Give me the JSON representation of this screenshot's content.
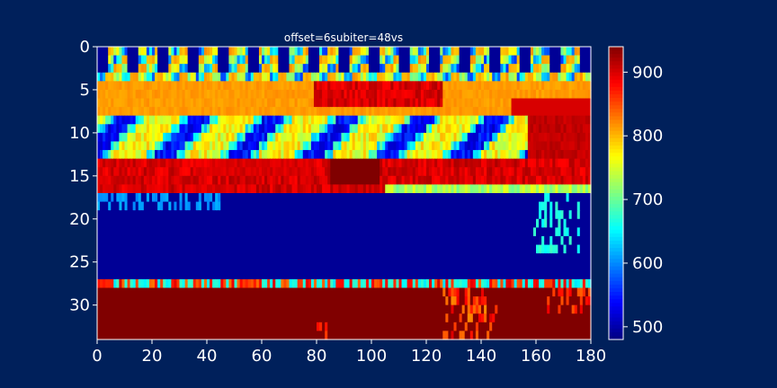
{
  "chart_data": {
    "type": "heatmap",
    "title": "offset=6subiter=48vs",
    "xlabel": "",
    "ylabel": "",
    "colormap": "jet",
    "xlim": [
      0,
      180
    ],
    "ylim": [
      34,
      0
    ],
    "x_ticks": [
      0,
      20,
      40,
      60,
      80,
      100,
      120,
      140,
      160,
      180
    ],
    "y_ticks": [
      0,
      5,
      10,
      15,
      20,
      25,
      30
    ],
    "colorbar": {
      "range": [
        480,
        940
      ],
      "ticks": [
        500,
        600,
        700,
        800,
        900
      ]
    },
    "grid": false,
    "rows": 34,
    "cols": 180,
    "approximate_field_by_depth": [
      {
        "y_range": [
          0,
          4
        ],
        "value": "mixed 500-800 (comb of dark-blue/yellow stripes)"
      },
      {
        "y_range": [
          4,
          8
        ],
        "value": 810,
        "note": "orange/red 900+ patch around x=80-125"
      },
      {
        "y_range": [
          8,
          14
        ],
        "value": "mixed 560-760 (cyan/blue/yellow), red 900 at x=158-180"
      },
      {
        "y_range": [
          13,
          17
        ],
        "value": 900,
        "note": "dark-red 940 block at x=85-102"
      },
      {
        "y_range": [
          17,
          27
        ],
        "value": 490
      },
      {
        "y_range": [
          27,
          28
        ],
        "value": "mixed 650-900 transition band"
      },
      {
        "y_range": [
          28,
          34
        ],
        "value": 940,
        "note": "mixed 700-900 streaks near x=125-145, 165-180"
      }
    ]
  },
  "colors": {
    "background": "#00205b",
    "axis": "#ffffff",
    "text": "#ffffff"
  }
}
